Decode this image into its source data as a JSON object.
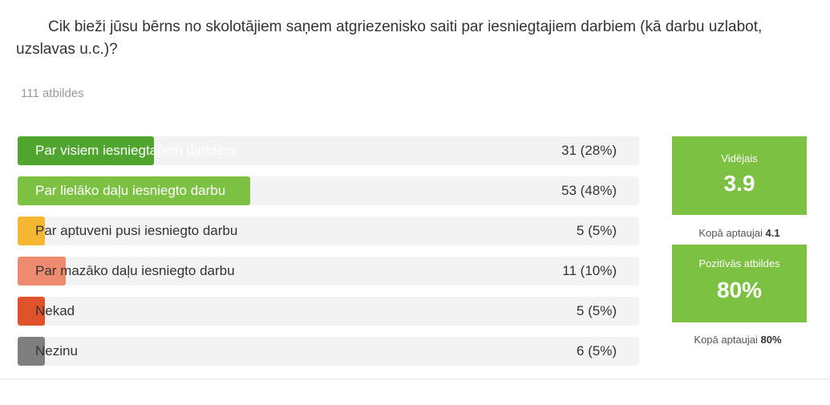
{
  "question": "Cik bieži jūsu bērns no skolotājiem saņem atgriezenisko saiti par iesniegtajiem darbiem (kā darbu uzlabot, uzslavas u.c.)?",
  "responses_count": "111 atbildes",
  "chart_data": {
    "type": "bar",
    "orientation": "horizontal",
    "categories": [
      "Par visiem iesniegtajiem darbiem",
      "Par lielāko daļu iesniegto darbu",
      "Par aptuveni pusi iesniegto darbu",
      "Par mazāko daļu iesniegto darbu",
      "Nekad",
      "Nezinu"
    ],
    "values": [
      31,
      53,
      5,
      11,
      5,
      6
    ],
    "value_labels": [
      "31 (28%)",
      "53 (48%)",
      "5 (5%)",
      "11 (10%)",
      "5 (5%)",
      "6 (5%)"
    ],
    "percent": [
      28,
      48,
      5,
      10,
      5,
      5
    ],
    "colors": [
      "#4fa52e",
      "#7cc142",
      "#f5b731",
      "#ee8b6f",
      "#e0522c",
      "#7f7f7f"
    ]
  },
  "summary": {
    "average": {
      "title": "Vidējais",
      "value": "3.9",
      "note_label": "Kopā aptaujai",
      "note_value": "4.1"
    },
    "positive": {
      "title": "Pozitīvās atbildes",
      "value": "80%",
      "note_label": "Kopā aptaujai",
      "note_value": "80%"
    }
  }
}
